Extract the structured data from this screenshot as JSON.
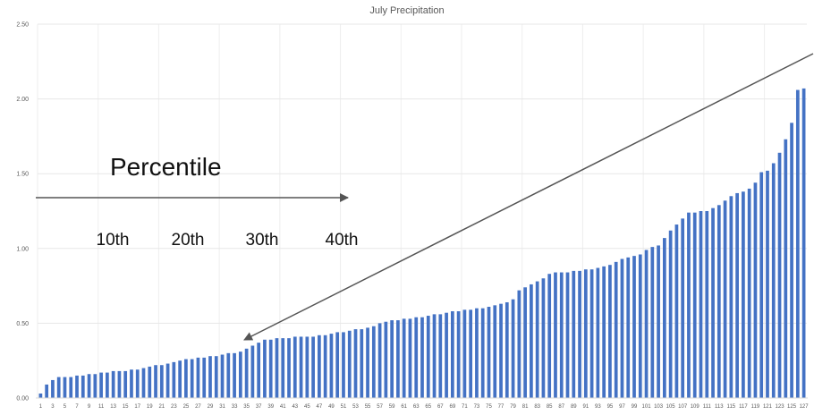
{
  "chart_data": {
    "type": "bar",
    "title": "July Precipitation",
    "xlabel": "",
    "ylabel": "",
    "ylim": [
      0,
      2.5
    ],
    "y_ticks": [
      "0.00",
      "0.50",
      "1.00",
      "1.50",
      "2.00",
      "2.50"
    ],
    "grid": true,
    "x_tick_labels": [
      "1",
      "3",
      "5",
      "7",
      "9",
      "11",
      "13",
      "15",
      "17",
      "19",
      "21",
      "23",
      "25",
      "27",
      "29",
      "31",
      "33",
      "35",
      "37",
      "39",
      "41",
      "43",
      "45",
      "47",
      "49",
      "51",
      "53",
      "55",
      "57",
      "59",
      "61",
      "63",
      "65",
      "67",
      "69",
      "71",
      "73",
      "75",
      "77",
      "79",
      "81",
      "83",
      "85",
      "87",
      "89",
      "91",
      "93",
      "95",
      "97",
      "99",
      "101",
      "103",
      "105",
      "107",
      "109",
      "111",
      "113",
      "115",
      "117",
      "119",
      "121",
      "123",
      "125",
      "127"
    ],
    "categories": [
      1,
      2,
      3,
      4,
      5,
      6,
      7,
      8,
      9,
      10,
      11,
      12,
      13,
      14,
      15,
      16,
      17,
      18,
      19,
      20,
      21,
      22,
      23,
      24,
      25,
      26,
      27,
      28,
      29,
      30,
      31,
      32,
      33,
      34,
      35,
      36,
      37,
      38,
      39,
      40,
      41,
      42,
      43,
      44,
      45,
      46,
      47,
      48,
      49,
      50,
      51,
      52,
      53,
      54,
      55,
      56,
      57,
      58,
      59,
      60,
      61,
      62,
      63,
      64,
      65,
      66,
      67,
      68,
      69,
      70,
      71,
      72,
      73,
      74,
      75,
      76,
      77,
      78,
      79,
      80,
      81,
      82,
      83,
      84,
      85,
      86,
      87,
      88,
      89,
      90,
      91,
      92,
      93,
      94,
      95,
      96,
      97,
      98,
      99,
      100,
      101,
      102,
      103,
      104,
      105,
      106,
      107,
      108,
      109,
      110,
      111,
      112,
      113,
      114,
      115,
      116,
      117,
      118,
      119,
      120,
      121,
      122,
      123,
      124,
      125,
      126,
      127
    ],
    "values": [
      0.03,
      0.09,
      0.12,
      0.14,
      0.14,
      0.14,
      0.15,
      0.15,
      0.16,
      0.16,
      0.17,
      0.17,
      0.18,
      0.18,
      0.18,
      0.19,
      0.19,
      0.2,
      0.21,
      0.22,
      0.22,
      0.23,
      0.24,
      0.25,
      0.26,
      0.26,
      0.27,
      0.27,
      0.28,
      0.28,
      0.29,
      0.3,
      0.3,
      0.31,
      0.33,
      0.35,
      0.37,
      0.39,
      0.39,
      0.4,
      0.4,
      0.4,
      0.41,
      0.41,
      0.41,
      0.41,
      0.42,
      0.42,
      0.43,
      0.44,
      0.44,
      0.45,
      0.46,
      0.46,
      0.47,
      0.48,
      0.5,
      0.51,
      0.52,
      0.52,
      0.53,
      0.53,
      0.54,
      0.54,
      0.55,
      0.56,
      0.56,
      0.57,
      0.58,
      0.58,
      0.59,
      0.59,
      0.6,
      0.6,
      0.61,
      0.62,
      0.63,
      0.64,
      0.66,
      0.72,
      0.74,
      0.76,
      0.78,
      0.8,
      0.83,
      0.84,
      0.84,
      0.84,
      0.85,
      0.85,
      0.86,
      0.86,
      0.87,
      0.88,
      0.89,
      0.91,
      0.93,
      0.94,
      0.95,
      0.96,
      0.99,
      1.01,
      1.02,
      1.07,
      1.12,
      1.16,
      1.2,
      1.24,
      1.24,
      1.25,
      1.25,
      1.27,
      1.29,
      1.32,
      1.35,
      1.37,
      1.38,
      1.4,
      1.44,
      1.51,
      1.52,
      1.57,
      1.64,
      1.73,
      1.84,
      2.06,
      2.07
    ],
    "bar_color": "#4472c4",
    "annotations": {
      "percentile_label": "Percentile",
      "percentile_ticks": [
        "10th",
        "20th",
        "30th",
        "40th"
      ]
    }
  }
}
